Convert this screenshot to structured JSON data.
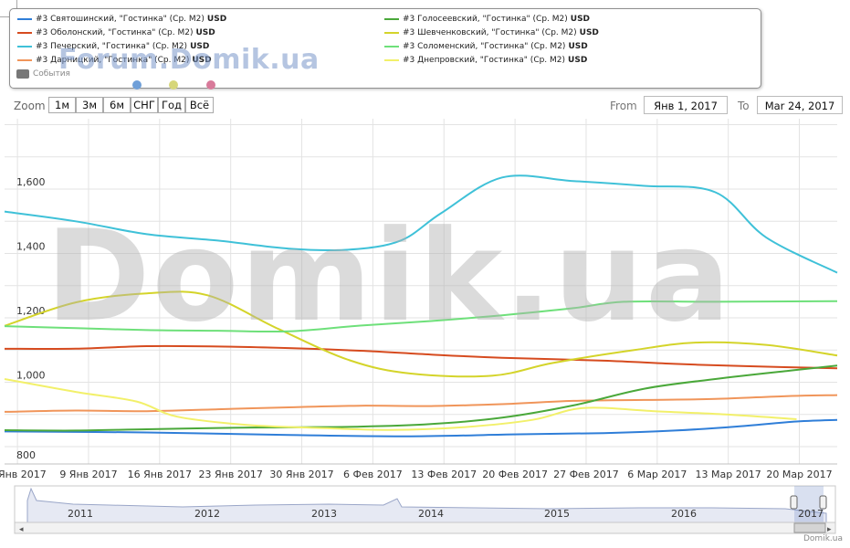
{
  "legend": {
    "left": [
      {
        "label": "#3 Святошинский, \"Гостинка\" (Ср. М2)",
        "unit": "USD",
        "color": "#2f7ed8"
      },
      {
        "label": "#3 Оболонский, \"Гостинка\" (Ср. М2)",
        "unit": "USD",
        "color": "#d64b1f"
      },
      {
        "label": "#3 Печерский, \"Гостинка\" (Ср. М2)",
        "unit": "USD",
        "color": "#3fc1d8"
      },
      {
        "label": "#3 Дарницкий, \"Гостинка\" (Ср. М2)",
        "unit": "USD",
        "color": "#f0955a"
      }
    ],
    "right": [
      {
        "label": "#3 Голосеевский, \"Гостинка\" (Ср. М2)",
        "unit": "USD",
        "color": "#4aa83a"
      },
      {
        "label": "#3 Шевченковский, \"Гостинка\" (Ср. М2)",
        "unit": "USD",
        "color": "#d4d42a"
      },
      {
        "label": "#3 Соломенский, \"Гостинка\" (Ср. М2)",
        "unit": "USD",
        "color": "#6ee07a"
      },
      {
        "label": "#3 Днепровский, \"Гостинка\" (Ср. М2)",
        "unit": "USD",
        "color": "#f2f06a"
      }
    ],
    "events_label": "События"
  },
  "watermark_small": "Forum.Domik.ua",
  "watermark_big": "Domik.ua",
  "credit": "Domik.ua",
  "dots": [
    "#6f9fd8",
    "#d6d67a",
    "#d87a9a"
  ],
  "zoom": {
    "label": "Zoom",
    "buttons": [
      "1м",
      "3м",
      "6м",
      "СНГ",
      "Год",
      "Всё"
    ]
  },
  "range": {
    "from_label": "From",
    "from_value": "Янв 1, 2017",
    "to_label": "To",
    "to_value": "Mar 24, 2017"
  },
  "navigator": {
    "years": [
      "2011",
      "2012",
      "2013",
      "2014",
      "2015",
      "2016",
      "2017"
    ],
    "series_color": "#9aa6c8"
  },
  "chart_data": {
    "type": "line",
    "x_start": "2017-01-01",
    "x_end": "2017-03-24",
    "x_tick_labels": [
      "2 Янв 2017",
      "9 Янв 2017",
      "16 Янв 2017",
      "23 Янв 2017",
      "30 Янв 2017",
      "6 Фев 2017",
      "13 Фев 2017",
      "20 Фев 2017",
      "27 Фев 2017",
      "6 Мар 2017",
      "13 Мар 2017",
      "20 Мар 2017"
    ],
    "x_tick_dates": [
      "2017-01-02",
      "2017-01-09",
      "2017-01-16",
      "2017-01-23",
      "2017-01-30",
      "2017-02-06",
      "2017-02-13",
      "2017-02-20",
      "2017-02-27",
      "2017-03-06",
      "2017-03-13",
      "2017-03-20"
    ],
    "y_tick_labels": [
      "800",
      "1,000",
      "1,200",
      "1,400",
      "1,600"
    ],
    "y_ticks": [
      800,
      1000,
      1200,
      1400,
      1600
    ],
    "ylim": [
      800,
      1800
    ],
    "grid": true,
    "legend_position": "top",
    "series": [
      {
        "name": "#3 Святошинский, \"Гостинка\" (Ср. М2)",
        "color": "#2f7ed8",
        "points": [
          [
            "2017-01-01",
            847
          ],
          [
            "2017-01-15",
            844
          ],
          [
            "2017-01-29",
            836
          ],
          [
            "2017-02-10",
            832
          ],
          [
            "2017-02-20",
            838
          ],
          [
            "2017-03-01",
            842
          ],
          [
            "2017-03-08",
            850
          ],
          [
            "2017-03-14",
            862
          ],
          [
            "2017-03-20",
            878
          ],
          [
            "2017-03-24",
            883
          ]
        ]
      },
      {
        "name": "#3 Оболонский, \"Гостинка\" (Ср. М2)",
        "color": "#d64b1f",
        "points": [
          [
            "2017-01-01",
            1104
          ],
          [
            "2017-01-08",
            1104
          ],
          [
            "2017-01-15",
            1112
          ],
          [
            "2017-01-22",
            1111
          ],
          [
            "2017-01-29",
            1106
          ],
          [
            "2017-02-05",
            1098
          ],
          [
            "2017-02-12",
            1086
          ],
          [
            "2017-02-19",
            1076
          ],
          [
            "2017-03-01",
            1067
          ],
          [
            "2017-03-08",
            1057
          ],
          [
            "2017-03-15",
            1050
          ],
          [
            "2017-03-24",
            1043
          ]
        ]
      },
      {
        "name": "#3 Печерский, \"Гостинка\" (Ср. М2)",
        "color": "#3fc1d8",
        "points": [
          [
            "2017-01-01",
            1530
          ],
          [
            "2017-01-08",
            1500
          ],
          [
            "2017-01-15",
            1460
          ],
          [
            "2017-01-22",
            1440
          ],
          [
            "2017-01-29",
            1415
          ],
          [
            "2017-02-04",
            1412
          ],
          [
            "2017-02-09",
            1440
          ],
          [
            "2017-02-13",
            1525
          ],
          [
            "2017-02-19",
            1636
          ],
          [
            "2017-02-26",
            1625
          ],
          [
            "2017-03-05",
            1610
          ],
          [
            "2017-03-12",
            1590
          ],
          [
            "2017-03-17",
            1450
          ],
          [
            "2017-03-24",
            1340
          ]
        ]
      },
      {
        "name": "#3 Дарницкий, \"Гостинка\" (Ср. М2)",
        "color": "#f0955a",
        "points": [
          [
            "2017-01-01",
            908
          ],
          [
            "2017-01-08",
            912
          ],
          [
            "2017-01-15",
            910
          ],
          [
            "2017-01-22",
            916
          ],
          [
            "2017-01-29",
            922
          ],
          [
            "2017-02-05",
            927
          ],
          [
            "2017-02-12",
            926
          ],
          [
            "2017-02-19",
            932
          ],
          [
            "2017-02-26",
            942
          ],
          [
            "2017-03-05",
            945
          ],
          [
            "2017-03-12",
            948
          ],
          [
            "2017-03-19",
            957
          ],
          [
            "2017-03-24",
            960
          ]
        ]
      },
      {
        "name": "#3 Голосеевский, \"Гостинка\" (Ср. М2)",
        "color": "#4aa83a",
        "points": [
          [
            "2017-01-01",
            851
          ],
          [
            "2017-01-08",
            850
          ],
          [
            "2017-01-15",
            854
          ],
          [
            "2017-01-22",
            858
          ],
          [
            "2017-01-29",
            860
          ],
          [
            "2017-02-05",
            862
          ],
          [
            "2017-02-12",
            870
          ],
          [
            "2017-02-19",
            890
          ],
          [
            "2017-02-26",
            928
          ],
          [
            "2017-03-05",
            980
          ],
          [
            "2017-03-12",
            1010
          ],
          [
            "2017-03-19",
            1035
          ],
          [
            "2017-03-24",
            1052
          ]
        ]
      },
      {
        "name": "#3 Шевченковский, \"Гостинка\" (Ср. М2)",
        "color": "#d4d42a",
        "points": [
          [
            "2017-01-01",
            1175
          ],
          [
            "2017-01-08",
            1248
          ],
          [
            "2017-01-15",
            1276
          ],
          [
            "2017-01-21",
            1270
          ],
          [
            "2017-01-28",
            1165
          ],
          [
            "2017-02-04",
            1068
          ],
          [
            "2017-02-10",
            1027
          ],
          [
            "2017-02-18",
            1020
          ],
          [
            "2017-02-24",
            1060
          ],
          [
            "2017-03-04",
            1100
          ],
          [
            "2017-03-10",
            1123
          ],
          [
            "2017-03-17",
            1116
          ],
          [
            "2017-03-24",
            1083
          ]
        ]
      },
      {
        "name": "#3 Соломенский, \"Гостинка\" (Ср. М2)",
        "color": "#6ee07a",
        "points": [
          [
            "2017-01-01",
            1174
          ],
          [
            "2017-01-08",
            1168
          ],
          [
            "2017-01-15",
            1162
          ],
          [
            "2017-01-22",
            1160
          ],
          [
            "2017-01-29",
            1158
          ],
          [
            "2017-02-05",
            1176
          ],
          [
            "2017-02-12",
            1190
          ],
          [
            "2017-02-19",
            1208
          ],
          [
            "2017-02-26",
            1230
          ],
          [
            "2017-03-03",
            1250
          ],
          [
            "2017-03-12",
            1250
          ],
          [
            "2017-03-24",
            1252
          ]
        ]
      },
      {
        "name": "#3 Днепровский, \"Гостинка\" (Ср. М2)",
        "color": "#f2f06a",
        "points": [
          [
            "2017-01-01",
            1010
          ],
          [
            "2017-01-08",
            970
          ],
          [
            "2017-01-14",
            940
          ],
          [
            "2017-01-18",
            893
          ],
          [
            "2017-01-25",
            867
          ],
          [
            "2017-02-01",
            858
          ],
          [
            "2017-02-08",
            852
          ],
          [
            "2017-02-15",
            860
          ],
          [
            "2017-02-22",
            883
          ],
          [
            "2017-02-27",
            920
          ],
          [
            "2017-03-06",
            910
          ],
          [
            "2017-03-13",
            900
          ],
          [
            "2017-03-20",
            885
          ]
        ]
      }
    ]
  }
}
